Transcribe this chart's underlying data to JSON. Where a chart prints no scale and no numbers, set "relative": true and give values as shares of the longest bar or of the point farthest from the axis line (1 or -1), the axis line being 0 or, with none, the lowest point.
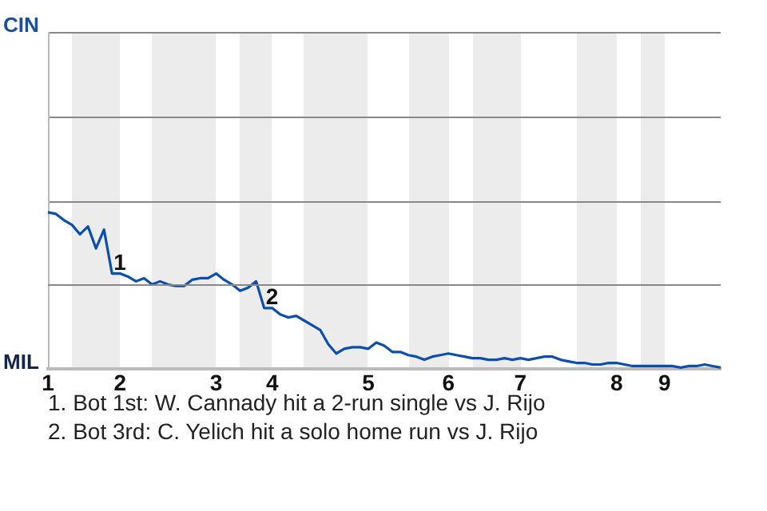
{
  "chart_data": {
    "type": "line",
    "relative": true,
    "categories": [
      "1",
      null,
      null,
      null,
      null,
      null,
      null,
      null,
      null,
      "2",
      null,
      null,
      null,
      null,
      null,
      null,
      null,
      null,
      null,
      null,
      null,
      "3",
      null,
      null,
      null,
      null,
      null,
      null,
      "4",
      null,
      null,
      null,
      null,
      null,
      null,
      null,
      null,
      null,
      null,
      null,
      "5",
      null,
      null,
      null,
      null,
      null,
      null,
      null,
      null,
      null,
      "6",
      null,
      null,
      null,
      null,
      null,
      null,
      null,
      null,
      "7",
      null,
      null,
      null,
      null,
      null,
      null,
      null,
      null,
      null,
      null,
      null,
      "8",
      null,
      null,
      null,
      null,
      null,
      "9",
      null,
      null,
      null,
      null,
      null,
      null,
      null
    ],
    "marker": "none",
    "legend": false,
    "ref_lines": [
      {
        "axis": "y",
        "value": 0.54,
        "color": "#888888"
      }
    ],
    "series": [
      {
        "color": "#0a4fae",
        "values": [
          1.0,
          0.99,
          0.95,
          0.92,
          0.86,
          0.91,
          0.77,
          0.89,
          0.61,
          0.61,
          0.59,
          0.56,
          0.58,
          0.54,
          0.56,
          0.54,
          0.53,
          0.53,
          0.57,
          0.58,
          0.58,
          0.61,
          0.57,
          0.54,
          0.5,
          0.52,
          0.56,
          0.39,
          0.39,
          0.35,
          0.33,
          0.34,
          0.31,
          0.28,
          0.25,
          0.16,
          0.1,
          0.13,
          0.14,
          0.14,
          0.13,
          0.17,
          0.15,
          0.11,
          0.11,
          0.09,
          0.08,
          0.06,
          0.08,
          0.09,
          0.1,
          0.09,
          0.08,
          0.07,
          0.07,
          0.06,
          0.06,
          0.07,
          0.06,
          0.07,
          0.06,
          0.07,
          0.08,
          0.08,
          0.06,
          0.05,
          0.04,
          0.04,
          0.03,
          0.03,
          0.04,
          0.04,
          0.03,
          0.02,
          0.02,
          0.02,
          0.02,
          0.02,
          0.02,
          0.01,
          0.02,
          0.02,
          0.03,
          0.02,
          0.01
        ]
      }
    ],
    "annotations": [
      "CIN",
      "MIL",
      {
        "text": "1",
        "y": 0.61
      },
      {
        "text": "2",
        "y": 0.39
      },
      "1. Bot 1st: W. Cannady hit a 2-run single vs J. Rijo",
      "2. Bot 3rd: C. Yelich hit a solo home run vs J. Rijo"
    ]
  }
}
